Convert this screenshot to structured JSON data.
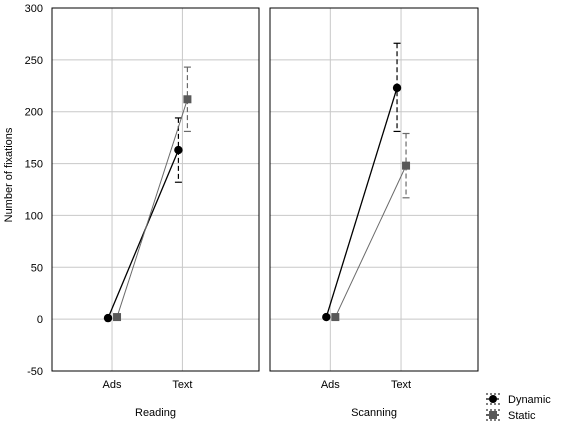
{
  "chart_data": {
    "type": "line",
    "ylabel": "Number of fixations",
    "ylim": [
      -50,
      300
    ],
    "yticks": [
      -50,
      0,
      50,
      100,
      150,
      200,
      250,
      300
    ],
    "grid": true,
    "legend_position": "bottom-right",
    "categories": [
      "Ads",
      "Text"
    ],
    "series_names": [
      "Dynamic",
      "Static"
    ],
    "colors": {
      "Dynamic": "#000000",
      "Static": "#595959"
    },
    "panels": [
      {
        "xlabel": "Reading",
        "series": [
          {
            "name": "Dynamic",
            "values": [
              1,
              163
            ],
            "error_low": [
              1,
              132
            ],
            "error_high": [
              1,
              194
            ]
          },
          {
            "name": "Static",
            "values": [
              2,
              212
            ],
            "error_low": [
              2,
              181
            ],
            "error_high": [
              2,
              243
            ]
          }
        ]
      },
      {
        "xlabel": "Scanning",
        "series": [
          {
            "name": "Dynamic",
            "values": [
              2,
              223
            ],
            "error_low": [
              2,
              181
            ],
            "error_high": [
              2,
              266
            ]
          },
          {
            "name": "Static",
            "values": [
              2,
              148
            ],
            "error_low": [
              2,
              117
            ],
            "error_high": [
              2,
              179
            ]
          }
        ]
      }
    ]
  }
}
